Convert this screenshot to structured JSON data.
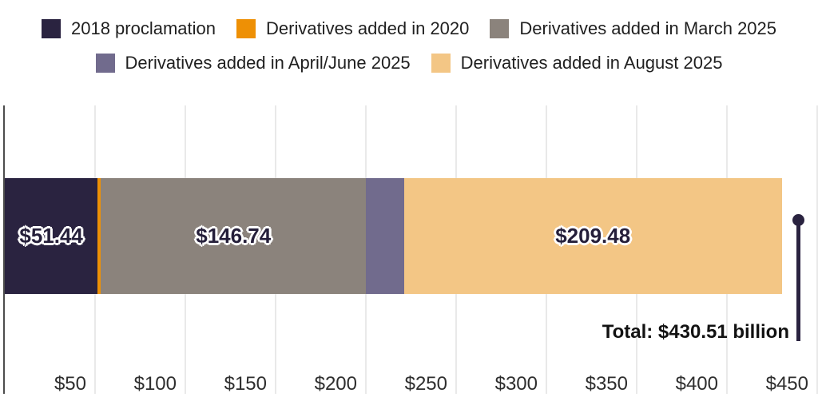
{
  "legend": {
    "items": [
      {
        "label": "2018 proclamation",
        "color": "#2a2340"
      },
      {
        "label": "Derivatives added in 2020",
        "color": "#ee9005"
      },
      {
        "label": "Derivatives added in March 2025",
        "color": "#8b837c"
      },
      {
        "label": "Derivatives added in April/June 2025",
        "color": "#716b8d"
      },
      {
        "label": "Derivatives added in August 2025",
        "color": "#f3c685"
      }
    ]
  },
  "chart_data": {
    "type": "bar",
    "orientation": "horizontal",
    "stacked": true,
    "unit": "billions of dollars",
    "series": [
      {
        "name": "2018 proclamation",
        "value": 51.44,
        "label": "$51.44",
        "color": "#2a2340"
      },
      {
        "name": "Derivatives added in 2020",
        "value": 1.85,
        "label": "",
        "color": "#ee9005"
      },
      {
        "name": "Derivatives added in March 2025",
        "value": 146.74,
        "label": "$146.74",
        "color": "#8b837c"
      },
      {
        "name": "Derivatives added in April/June 2025",
        "value": 21.0,
        "label": "",
        "color": "#716b8d"
      },
      {
        "name": "Derivatives added in August 2025",
        "value": 209.48,
        "label": "$209.48",
        "color": "#f3c685"
      }
    ],
    "total": 430.51,
    "total_label": "Total: $430.51 billion",
    "x_ticks": [
      "$50",
      "$100",
      "$150",
      "$200",
      "$250",
      "$300",
      "$350",
      "$400",
      "$450"
    ],
    "x_tick_values": [
      50,
      100,
      150,
      200,
      250,
      300,
      350,
      400,
      450
    ],
    "xlim": [
      0,
      450
    ],
    "grid": true,
    "legend_position": "top"
  }
}
